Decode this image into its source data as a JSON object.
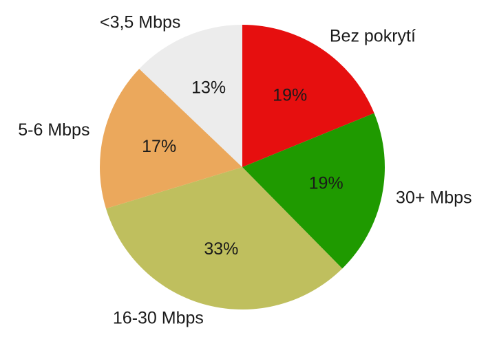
{
  "chart_data": {
    "type": "pie",
    "categories": [
      "Bez pokrytí",
      "30+ Mbps",
      "16-30 Mbps",
      "5-6 Mbps",
      "<3,5 Mbps"
    ],
    "values": [
      19,
      19,
      33,
      17,
      13
    ],
    "value_labels": [
      "19%",
      "19%",
      "33%",
      "17%",
      "13%"
    ],
    "colors": [
      "#e60f0f",
      "#1f9a00",
      "#bfbf5e",
      "#eba85c",
      "#ececec"
    ]
  }
}
